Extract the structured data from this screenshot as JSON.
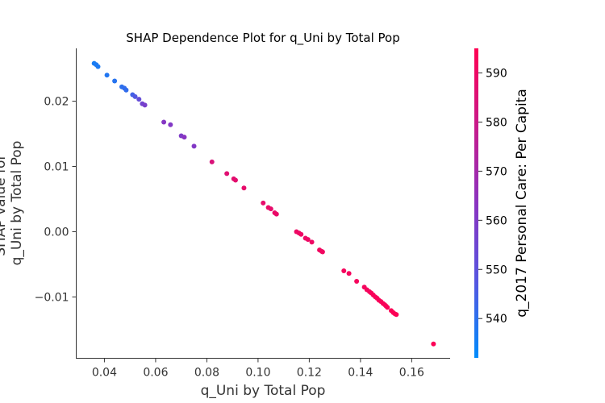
{
  "chart_data": {
    "type": "scatter",
    "title": "SHAP Dependence Plot for q_Uni by Total Pop",
    "xlabel": "q_Uni by Total Pop",
    "ylabel_lines": [
      "SHAP value for",
      "q_Uni by Total Pop"
    ],
    "colorbar_label": "q_2017 Personal Care: Per Capita",
    "xlim": [
      0.029,
      0.175
    ],
    "ylim": [
      -0.0194,
      0.0281
    ],
    "x_ticks": [
      0.04,
      0.06,
      0.08,
      0.1,
      0.12,
      0.14,
      0.16
    ],
    "x_tick_labels": [
      "0.04",
      "0.06",
      "0.08",
      "0.10",
      "0.12",
      "0.14",
      "0.16"
    ],
    "y_ticks": [
      0.02,
      0.01,
      0.0,
      -0.01
    ],
    "y_tick_labels": [
      "0.02",
      "0.01",
      "0.00",
      "−0.01"
    ],
    "color_range": [
      532,
      595
    ],
    "color_ticks": [
      540,
      550,
      560,
      570,
      580,
      590
    ],
    "color_tick_labels": [
      "540",
      "550",
      "560",
      "570",
      "580",
      "590"
    ],
    "colormap": [
      "#008bfb",
      "#5655e0",
      "#8a33c0",
      "#c81a8a",
      "#ff0052"
    ],
    "grid": false,
    "points": [
      {
        "x": 0.036,
        "y": 0.0258,
        "c": 536
      },
      {
        "x": 0.0368,
        "y": 0.0256,
        "c": 537
      },
      {
        "x": 0.0375,
        "y": 0.0253,
        "c": 537
      },
      {
        "x": 0.041,
        "y": 0.024,
        "c": 538
      },
      {
        "x": 0.044,
        "y": 0.0231,
        "c": 539
      },
      {
        "x": 0.0468,
        "y": 0.0222,
        "c": 540
      },
      {
        "x": 0.0478,
        "y": 0.022,
        "c": 541
      },
      {
        "x": 0.0485,
        "y": 0.0217,
        "c": 541
      },
      {
        "x": 0.051,
        "y": 0.021,
        "c": 544
      },
      {
        "x": 0.052,
        "y": 0.0207,
        "c": 547
      },
      {
        "x": 0.0535,
        "y": 0.0203,
        "c": 552
      },
      {
        "x": 0.0548,
        "y": 0.0196,
        "c": 556
      },
      {
        "x": 0.0558,
        "y": 0.0194,
        "c": 558
      },
      {
        "x": 0.0632,
        "y": 0.0168,
        "c": 562
      },
      {
        "x": 0.0658,
        "y": 0.0164,
        "c": 561
      },
      {
        "x": 0.07,
        "y": 0.0147,
        "c": 560
      },
      {
        "x": 0.0712,
        "y": 0.0145,
        "c": 563
      },
      {
        "x": 0.075,
        "y": 0.0131,
        "c": 561
      },
      {
        "x": 0.082,
        "y": 0.0107,
        "c": 584
      },
      {
        "x": 0.0878,
        "y": 0.0089,
        "c": 586
      },
      {
        "x": 0.0905,
        "y": 0.0081,
        "c": 587
      },
      {
        "x": 0.0912,
        "y": 0.0079,
        "c": 587
      },
      {
        "x": 0.0945,
        "y": 0.0067,
        "c": 588
      },
      {
        "x": 0.102,
        "y": 0.0044,
        "c": 588
      },
      {
        "x": 0.104,
        "y": 0.0037,
        "c": 589
      },
      {
        "x": 0.105,
        "y": 0.0035,
        "c": 588
      },
      {
        "x": 0.1065,
        "y": 0.0029,
        "c": 589
      },
      {
        "x": 0.1072,
        "y": 0.0027,
        "c": 589
      },
      {
        "x": 0.115,
        "y": 0.0,
        "c": 590
      },
      {
        "x": 0.116,
        "y": -0.0002,
        "c": 590
      },
      {
        "x": 0.1168,
        "y": -0.0004,
        "c": 590
      },
      {
        "x": 0.1185,
        "y": -0.001,
        "c": 590
      },
      {
        "x": 0.1195,
        "y": -0.0012,
        "c": 590
      },
      {
        "x": 0.121,
        "y": -0.0016,
        "c": 590
      },
      {
        "x": 0.124,
        "y": -0.0028,
        "c": 591
      },
      {
        "x": 0.1248,
        "y": -0.003,
        "c": 591
      },
      {
        "x": 0.1252,
        "y": -0.0031,
        "c": 591
      },
      {
        "x": 0.1335,
        "y": -0.006,
        "c": 592
      },
      {
        "x": 0.1355,
        "y": -0.0064,
        "c": 592
      },
      {
        "x": 0.1385,
        "y": -0.0076,
        "c": 592
      },
      {
        "x": 0.1415,
        "y": -0.0085,
        "c": 592
      },
      {
        "x": 0.1425,
        "y": -0.0089,
        "c": 592
      },
      {
        "x": 0.1435,
        "y": -0.0092,
        "c": 592
      },
      {
        "x": 0.1442,
        "y": -0.0094,
        "c": 593
      },
      {
        "x": 0.145,
        "y": -0.0097,
        "c": 593
      },
      {
        "x": 0.1458,
        "y": -0.01,
        "c": 593
      },
      {
        "x": 0.1465,
        "y": -0.0102,
        "c": 593
      },
      {
        "x": 0.1472,
        "y": -0.0105,
        "c": 593
      },
      {
        "x": 0.148,
        "y": -0.0107,
        "c": 593
      },
      {
        "x": 0.1488,
        "y": -0.011,
        "c": 593
      },
      {
        "x": 0.1495,
        "y": -0.0112,
        "c": 593
      },
      {
        "x": 0.15,
        "y": -0.0114,
        "c": 593
      },
      {
        "x": 0.1505,
        "y": -0.0116,
        "c": 593
      },
      {
        "x": 0.152,
        "y": -0.0121,
        "c": 594
      },
      {
        "x": 0.1528,
        "y": -0.0124,
        "c": 594
      },
      {
        "x": 0.1535,
        "y": -0.0126,
        "c": 594
      },
      {
        "x": 0.154,
        "y": -0.0127,
        "c": 594
      },
      {
        "x": 0.1685,
        "y": -0.0172,
        "c": 594
      }
    ]
  }
}
